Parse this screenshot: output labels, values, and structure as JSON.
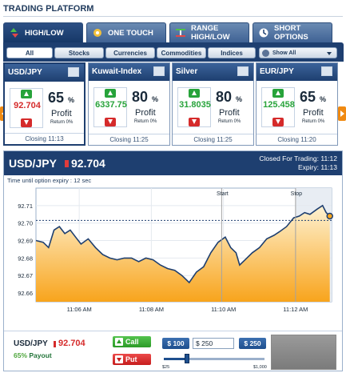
{
  "header": {
    "title": "TRADING PLATFORM"
  },
  "type_tabs": [
    {
      "label": "HIGH/LOW",
      "icon": "updown-arrows-icon",
      "active": true
    },
    {
      "label": "ONE TOUCH",
      "icon": "touch-icon",
      "active": false
    },
    {
      "label": "RANGE HIGH/LOW",
      "icon": "range-icon",
      "active": false
    },
    {
      "label": "SHORT OPTIONS",
      "icon": "clock-icon",
      "active": false
    }
  ],
  "asset_tabs": [
    "All",
    "Stocks",
    "Currencies",
    "Commodities",
    "Indices"
  ],
  "show_all": "Show All",
  "assets": [
    {
      "name": "USD/JPY",
      "price": "92.704",
      "price_color": "#d52b2b",
      "return_pct": "65",
      "pct_sign": "%",
      "profit_label": "Profit",
      "return_label": "Return 0%",
      "closing": "Closing 11:13",
      "active": true
    },
    {
      "name": "Kuwait-Index",
      "price": "6337.75",
      "price_color": "#27a33a",
      "return_pct": "80",
      "pct_sign": "%",
      "profit_label": "Profit",
      "return_label": "Return 0%",
      "closing": "Closing 11:25",
      "active": false
    },
    {
      "name": "Silver",
      "price": "31.8035",
      "price_color": "#27a33a",
      "return_pct": "80",
      "pct_sign": "%",
      "profit_label": "Profit",
      "return_label": "Return 0%",
      "closing": "Closing 11:25",
      "active": false
    },
    {
      "name": "EUR/JPY",
      "price": "125.458",
      "price_color": "#27a33a",
      "return_pct": "65",
      "pct_sign": "%",
      "profit_label": "Profit",
      "return_label": "Return 0%",
      "closing": "Closing 11:20",
      "active": false
    }
  ],
  "main": {
    "symbol": "USD/JPY",
    "price": "92.704",
    "closed_for_trading": "Closed For Trading: 11:12",
    "expiry": "Expiry: 11:13",
    "time_until_expiry": "Time until option expiry : 12 sec"
  },
  "chart_data": {
    "type": "area",
    "y_ticks": [
      "92.71",
      "92.70",
      "92.69",
      "92.68",
      "92.67",
      "92.66"
    ],
    "ylim": [
      92.655,
      92.72
    ],
    "x_ticks": [
      "11:06 AM",
      "11:08 AM",
      "11:10 AM",
      "11:12 AM"
    ],
    "x_tick_minutes": [
      6,
      8,
      10,
      12
    ],
    "xlim": [
      4.8,
      13.0
    ],
    "reference_price": 92.7015,
    "start_marker": {
      "label": "Start",
      "minute": 9.95
    },
    "stop_marker": {
      "label": "Stop",
      "minute": 12.0
    },
    "series": [
      {
        "values": [
          [
            4.8,
            92.69
          ],
          [
            5.0,
            92.689
          ],
          [
            5.15,
            92.686
          ],
          [
            5.3,
            92.696
          ],
          [
            5.45,
            92.698
          ],
          [
            5.6,
            92.694
          ],
          [
            5.75,
            92.696
          ],
          [
            5.9,
            92.692
          ],
          [
            6.05,
            92.688
          ],
          [
            6.25,
            92.691
          ],
          [
            6.45,
            92.686
          ],
          [
            6.65,
            92.682
          ],
          [
            6.85,
            92.68
          ],
          [
            7.05,
            92.679
          ],
          [
            7.25,
            92.68
          ],
          [
            7.45,
            92.68
          ],
          [
            7.65,
            92.678
          ],
          [
            7.85,
            92.68
          ],
          [
            8.05,
            92.679
          ],
          [
            8.25,
            92.676
          ],
          [
            8.45,
            92.674
          ],
          [
            8.65,
            92.673
          ],
          [
            8.85,
            92.67
          ],
          [
            9.05,
            92.666
          ],
          [
            9.25,
            92.672
          ],
          [
            9.45,
            92.675
          ],
          [
            9.65,
            92.683
          ],
          [
            9.85,
            92.689
          ],
          [
            10.05,
            92.692
          ],
          [
            10.2,
            92.686
          ],
          [
            10.35,
            92.683
          ],
          [
            10.45,
            92.676
          ],
          [
            10.6,
            92.679
          ],
          [
            10.8,
            92.683
          ],
          [
            11.0,
            92.686
          ],
          [
            11.2,
            92.691
          ],
          [
            11.4,
            92.693
          ],
          [
            11.55,
            92.695
          ],
          [
            11.75,
            92.698
          ],
          [
            11.95,
            92.703
          ],
          [
            12.1,
            92.704
          ],
          [
            12.25,
            92.706
          ],
          [
            12.4,
            92.705
          ],
          [
            12.6,
            92.708
          ],
          [
            12.75,
            92.71
          ],
          [
            12.85,
            92.706
          ],
          [
            12.95,
            92.704
          ]
        ]
      }
    ],
    "colors": {
      "line": "#1e3f70",
      "fill_top": "#fef2d2",
      "fill_bottom": "#f8a41c",
      "ref_line": "#1e3f70"
    }
  },
  "trade": {
    "symbol": "USD/JPY",
    "price": "92.704",
    "payout_pct": "65%",
    "payout_label": "Payout",
    "call_label": "Call",
    "put_label": "Put",
    "amount_low": "$ 100",
    "amount_value": "$ 250",
    "amount_high": "$ 250",
    "slider_min": "$25",
    "slider_max": "$1,000",
    "slider_fraction": 0.23
  }
}
